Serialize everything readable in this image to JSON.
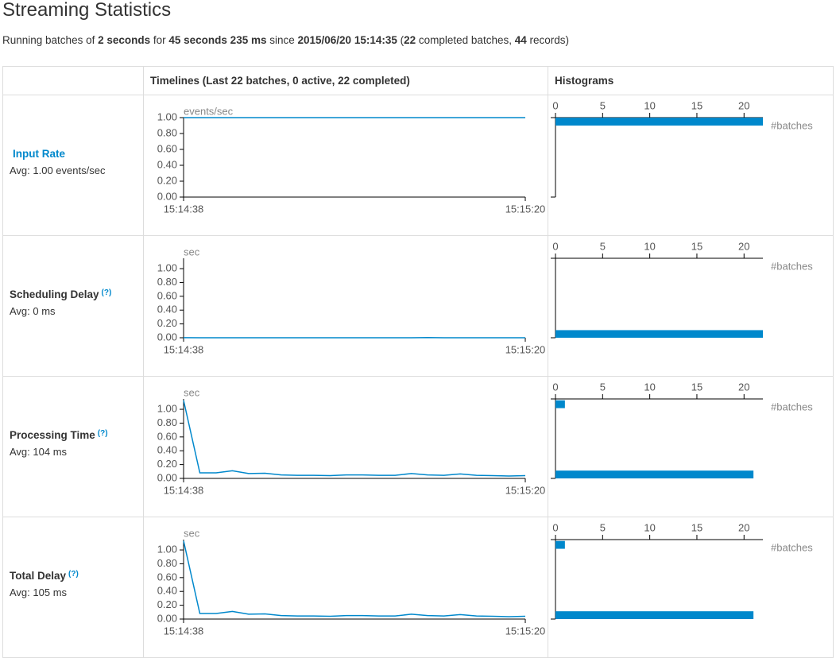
{
  "header": {
    "title": "Streaming Statistics"
  },
  "summary": [
    "Running batches of ",
    "2 seconds",
    " for ",
    "45 seconds 235 ms",
    " since ",
    "2015/06/20 15:14:35",
    " (",
    22,
    " completed batches, ",
    44,
    " records)"
  ],
  "table": {
    "headers": [
      "",
      "Timelines (Last 22 batches, 0 active, 22 completed)",
      "Histograms"
    ],
    "rows": [
      {
        "label": "Input Rate",
        "avg": "Avg: 1.00 events/sec",
        "timeline": {
          "type": "line",
          "unit": "events/sec",
          "color": "#0088cc",
          "x": [
            "15:14:38",
            "15:14:40",
            "15:14:42",
            "15:14:44",
            "15:14:46",
            "15:14:48",
            "15:14:50",
            "15:14:52",
            "15:14:54",
            "15:14:56",
            "15:14:58",
            "15:15:00",
            "15:15:02",
            "15:15:04",
            "15:15:06",
            "15:15:08",
            "15:15:10",
            "15:15:12",
            "15:15:14",
            "15:15:16",
            "15:15:18",
            "15:15:20"
          ],
          "values": [
            1,
            1,
            1,
            1,
            1,
            1,
            1,
            1,
            1,
            1,
            1,
            1,
            1,
            1,
            1,
            1,
            1,
            1,
            1,
            1,
            1,
            1
          ],
          "ylim": [
            0,
            1
          ],
          "yticks": [
            {
              "value": 0,
              "label": "0.00"
            },
            {
              "value": 0.2,
              "label": "0.20"
            },
            {
              "value": 0.4,
              "label": "0.40"
            },
            {
              "value": 0.6,
              "label": "0.60"
            },
            {
              "value": 0.8,
              "label": "0.80"
            },
            {
              "value": 1,
              "label": "1.00"
            }
          ],
          "xticks": [
            "15:14:38",
            "15:15:20"
          ]
        },
        "histogram": {
          "type": "histogram",
          "color": "#0088cc",
          "xlabel": "#batches",
          "bins": [
            0.9,
            1.0
          ],
          "counts": [
            22
          ],
          "xlim": [
            0,
            22
          ],
          "xticks": [
            0,
            5,
            10,
            15,
            20
          ]
        }
      },
      {
        "label": "Scheduling Delay",
        "help": "(?)",
        "avg": "Avg: 0 ms",
        "timeline": {
          "type": "line",
          "unit": "sec",
          "color": "#0088cc",
          "x": [
            "15:14:38",
            "15:14:40",
            "15:14:42",
            "15:14:44",
            "15:14:46",
            "15:14:48",
            "15:14:50",
            "15:14:52",
            "15:14:54",
            "15:14:56",
            "15:14:58",
            "15:15:00",
            "15:15:02",
            "15:15:04",
            "15:15:06",
            "15:15:08",
            "15:15:10",
            "15:15:12",
            "15:15:14",
            "15:15:16",
            "15:15:18",
            "15:15:20"
          ],
          "values": [
            0.002,
            0,
            0,
            0,
            0,
            0,
            0,
            0,
            0,
            0,
            0,
            0,
            0,
            0,
            0,
            0.003,
            0,
            0,
            0,
            0,
            0,
            0
          ],
          "ylim": [
            0,
            1.15
          ],
          "yticks": [
            {
              "value": 0,
              "label": "0.00"
            },
            {
              "value": 0.2,
              "label": "0.20"
            },
            {
              "value": 0.4,
              "label": "0.40"
            },
            {
              "value": 0.6,
              "label": "0.60"
            },
            {
              "value": 0.8,
              "label": "0.80"
            },
            {
              "value": 1,
              "label": "1.00"
            }
          ],
          "xticks": [
            "15:14:38",
            "15:15:20"
          ]
        },
        "histogram": {
          "type": "histogram",
          "color": "#0088cc",
          "xlabel": "#batches",
          "bins": [
            0,
            0.11
          ],
          "counts": [
            22
          ],
          "xlim": [
            0,
            22
          ],
          "xticks": [
            0,
            5,
            10,
            15,
            20
          ]
        }
      },
      {
        "label": "Processing Time",
        "help": "(?)",
        "avg": "Avg: 104 ms",
        "timeline": {
          "type": "line",
          "unit": "sec",
          "color": "#0088cc",
          "x": [
            "15:14:38",
            "15:14:40",
            "15:14:42",
            "15:14:44",
            "15:14:46",
            "15:14:48",
            "15:14:50",
            "15:14:52",
            "15:14:54",
            "15:14:56",
            "15:14:58",
            "15:15:00",
            "15:15:02",
            "15:15:04",
            "15:15:06",
            "15:15:08",
            "15:15:10",
            "15:15:12",
            "15:15:14",
            "15:15:16",
            "15:15:18",
            "15:15:20"
          ],
          "values": [
            1.13,
            0.08,
            0.08,
            0.11,
            0.07,
            0.075,
            0.05,
            0.045,
            0.045,
            0.04,
            0.05,
            0.05,
            0.045,
            0.045,
            0.07,
            0.05,
            0.045,
            0.065,
            0.045,
            0.04,
            0.035,
            0.04
          ],
          "ylim": [
            0,
            1.15
          ],
          "yticks": [
            {
              "value": 0,
              "label": "0.00"
            },
            {
              "value": 0.2,
              "label": "0.20"
            },
            {
              "value": 0.4,
              "label": "0.40"
            },
            {
              "value": 0.6,
              "label": "0.60"
            },
            {
              "value": 0.8,
              "label": "0.80"
            },
            {
              "value": 1,
              "label": "1.00"
            }
          ],
          "xticks": [
            "15:14:38",
            "15:15:20"
          ]
        },
        "histogram": {
          "type": "histogram",
          "color": "#0088cc",
          "xlabel": "#batches",
          "bins": [
            0,
            0.113,
            0.226,
            0.339,
            0.452,
            0.565,
            0.678,
            0.791,
            0.904,
            1.017,
            1.13
          ],
          "counts": [
            21,
            0,
            0,
            0,
            0,
            0,
            0,
            0,
            0,
            1
          ],
          "xlim": [
            0,
            22
          ],
          "xticks": [
            0,
            5,
            10,
            15,
            20
          ]
        }
      },
      {
        "label": "Total Delay",
        "help": "(?)",
        "avg": "Avg: 105 ms",
        "timeline": {
          "type": "line",
          "unit": "sec",
          "color": "#0088cc",
          "x": [
            "15:14:38",
            "15:14:40",
            "15:14:42",
            "15:14:44",
            "15:14:46",
            "15:14:48",
            "15:14:50",
            "15:14:52",
            "15:14:54",
            "15:14:56",
            "15:14:58",
            "15:15:00",
            "15:15:02",
            "15:15:04",
            "15:15:06",
            "15:15:08",
            "15:15:10",
            "15:15:12",
            "15:15:14",
            "15:15:16",
            "15:15:18",
            "15:15:20"
          ],
          "values": [
            1.132,
            0.08,
            0.08,
            0.11,
            0.07,
            0.075,
            0.05,
            0.045,
            0.045,
            0.04,
            0.05,
            0.05,
            0.045,
            0.045,
            0.07,
            0.05,
            0.045,
            0.065,
            0.045,
            0.04,
            0.035,
            0.04
          ],
          "ylim": [
            0,
            1.15
          ],
          "yticks": [
            {
              "value": 0,
              "label": "0.00"
            },
            {
              "value": 0.2,
              "label": "0.20"
            },
            {
              "value": 0.4,
              "label": "0.40"
            },
            {
              "value": 0.6,
              "label": "0.60"
            },
            {
              "value": 0.8,
              "label": "0.80"
            },
            {
              "value": 1,
              "label": "1.00"
            }
          ],
          "xticks": [
            "15:14:38",
            "15:15:20"
          ]
        },
        "histogram": {
          "type": "histogram",
          "color": "#0088cc",
          "xlabel": "#batches",
          "bins": [
            0,
            0.113,
            0.226,
            0.339,
            0.452,
            0.565,
            0.678,
            0.791,
            0.904,
            1.017,
            1.13
          ],
          "counts": [
            21,
            0,
            0,
            0,
            0,
            0,
            0,
            0,
            0,
            1
          ],
          "xlim": [
            0,
            22
          ],
          "xticks": [
            0,
            5,
            10,
            15,
            20
          ]
        }
      }
    ]
  }
}
